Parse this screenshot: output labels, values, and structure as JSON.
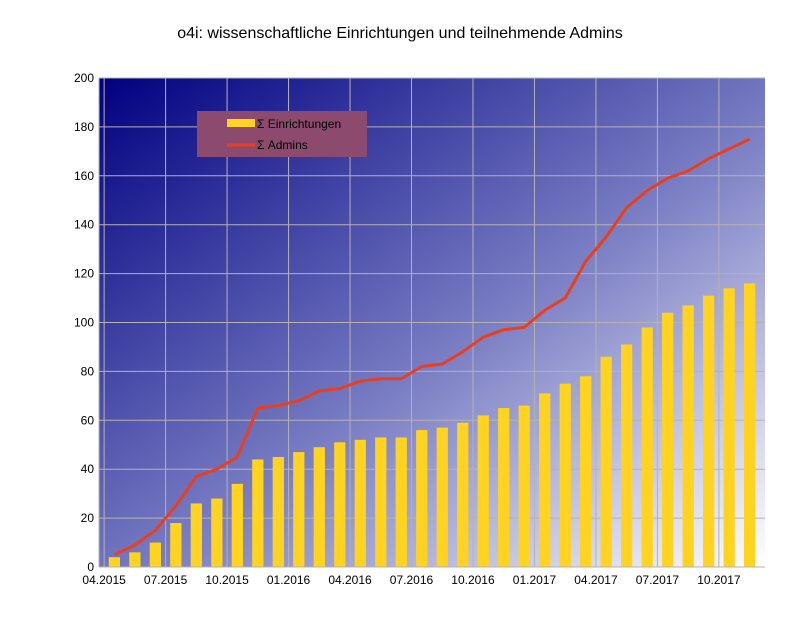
{
  "chart_data": {
    "type": "bar",
    "title": "o4i: wissenschaftliche Einrichtungen und teilnehmende Admins",
    "xlabel": "",
    "ylabel": "",
    "ylim": [
      0,
      200
    ],
    "yticks": [
      0,
      20,
      40,
      60,
      80,
      100,
      120,
      140,
      160,
      180,
      200
    ],
    "x_tick_labels": [
      "04.2015",
      "07.2015",
      "10.2015",
      "01.2016",
      "04.2016",
      "07.2016",
      "10.2016",
      "01.2017",
      "04.2017",
      "07.2017",
      "10.2017"
    ],
    "x_tick_every": 3,
    "grid": true,
    "legend_position": "top-left",
    "series": [
      {
        "name": "Σ Einrichtungen",
        "kind": "bar",
        "color": "#FFD320",
        "values": [
          4,
          6,
          10,
          18,
          26,
          28,
          34,
          44,
          45,
          47,
          49,
          51,
          52,
          53,
          53,
          56,
          57,
          59,
          62,
          65,
          66,
          71,
          75,
          78,
          86,
          91,
          98,
          104,
          107,
          111,
          114,
          116
        ]
      },
      {
        "name": "Σ Admins",
        "kind": "line",
        "color": "#E8401E",
        "values": [
          5,
          9,
          15,
          25,
          37,
          40,
          45,
          65,
          66,
          68,
          72,
          73,
          76,
          77,
          77,
          82,
          83,
          88,
          94,
          97,
          98,
          105,
          110,
          125,
          135,
          147,
          154,
          159,
          162,
          167,
          171,
          175
        ]
      }
    ]
  }
}
